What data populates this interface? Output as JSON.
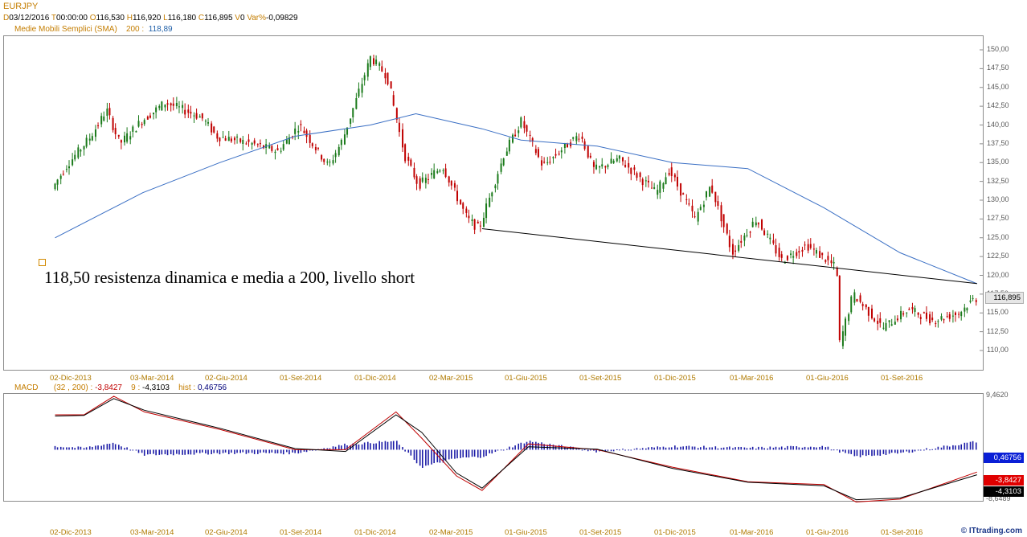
{
  "header": {
    "symbol": "EURJPY",
    "d_label": "D",
    "date": "03/12/2016",
    "t_label": "T",
    "time": "00:00:00",
    "o_label": "O",
    "open": "116,530",
    "h_label": "H",
    "high": "116,920",
    "l_label": "L",
    "low": "116,180",
    "c_label": "C",
    "close": "116,895",
    "v_label": "V",
    "volume": "0",
    "var_label": "Var%",
    "var": "-0,09829",
    "sma_label": "Medie Mobili Semplici (SMA)",
    "sma_period": "200",
    "sma_value": "118,89"
  },
  "annotation": {
    "text": "118,50 resistenza dinamica e media a 200, livello short"
  },
  "price_axis": {
    "ticks": [
      "150,00",
      "147,50",
      "145,00",
      "142,50",
      "140,00",
      "137,50",
      "135,00",
      "132,50",
      "130,00",
      "127,50",
      "125,00",
      "122,50",
      "120,00",
      "117,50",
      "115,00",
      "112,50",
      "110,00"
    ],
    "last_price": "116,895"
  },
  "date_labels": [
    "02-Dic-2013",
    "03-Mar-2014",
    "02-Giu-2014",
    "01-Set-2014",
    "01-Dic-2014",
    "02-Mar-2015",
    "01-Giu-2015",
    "01-Set-2015",
    "01-Dic-2015",
    "01-Mar-2016",
    "01-Giu-2016",
    "01-Set-2016"
  ],
  "macd_header": {
    "label": "MACD",
    "params": "(32 , 200)",
    "sep": ":",
    "macd_value": "-3,8427",
    "signal_period": "9",
    "signal_sep": ":",
    "signal_value": "-4,3103",
    "hist_label": "hist",
    "hist_sep": ":",
    "hist_value": "0,46756"
  },
  "macd_axis": {
    "top": "9,4620",
    "bottom": "-8,6489"
  },
  "macd_tags": {
    "hist": "0,46756",
    "macd": "-3,8427",
    "signal": "-4,3103"
  },
  "watermark": "© ITtrading.com",
  "colors": {
    "up": "#1a7a1a",
    "down": "#c00000",
    "sma": "#3a6fc4",
    "trend": "#000000",
    "hist": "#1a1aa6",
    "macd": "#c00000",
    "signal": "#000000"
  },
  "chart_data": [
    {
      "type": "candlestick",
      "symbol": "EURJPY",
      "x_range": [
        "2013-11",
        "2016-12-03"
      ],
      "ylim": [
        108.0,
        151.5
      ],
      "price_path": [
        {
          "x": "2013-11-15",
          "y": 131.5
        },
        {
          "x": "2013-12-02",
          "y": 134.5
        },
        {
          "x": "2014-01-01",
          "y": 138.5
        },
        {
          "x": "2014-01-20",
          "y": 142.0
        },
        {
          "x": "2014-02-05",
          "y": 137.5
        },
        {
          "x": "2014-03-03",
          "y": 140.5
        },
        {
          "x": "2014-04-01",
          "y": 143.0
        },
        {
          "x": "2014-05-15",
          "y": 141.0
        },
        {
          "x": "2014-06-02",
          "y": 138.5
        },
        {
          "x": "2014-07-15",
          "y": 137.5
        },
        {
          "x": "2014-08-15",
          "y": 136.5
        },
        {
          "x": "2014-09-10",
          "y": 140.0
        },
        {
          "x": "2014-10-15",
          "y": 134.5
        },
        {
          "x": "2014-11-01",
          "y": 138.0
        },
        {
          "x": "2014-12-05",
          "y": 149.0
        },
        {
          "x": "2014-12-25",
          "y": 146.5
        },
        {
          "x": "2015-01-15",
          "y": 136.0
        },
        {
          "x": "2015-02-01",
          "y": 132.0
        },
        {
          "x": "2015-03-02",
          "y": 134.5
        },
        {
          "x": "2015-04-01",
          "y": 127.5
        },
        {
          "x": "2015-04-15",
          "y": 126.2
        },
        {
          "x": "2015-05-15",
          "y": 136.0
        },
        {
          "x": "2015-06-05",
          "y": 140.5
        },
        {
          "x": "2015-07-01",
          "y": 134.5
        },
        {
          "x": "2015-08-01",
          "y": 137.5
        },
        {
          "x": "2015-08-15",
          "y": 138.8
        },
        {
          "x": "2015-09-01",
          "y": 134.0
        },
        {
          "x": "2015-10-01",
          "y": 135.5
        },
        {
          "x": "2015-11-15",
          "y": 131.0
        },
        {
          "x": "2015-12-01",
          "y": 134.0
        },
        {
          "x": "2016-01-01",
          "y": 127.5
        },
        {
          "x": "2016-01-20",
          "y": 132.0
        },
        {
          "x": "2016-02-15",
          "y": 123.0
        },
        {
          "x": "2016-03-15",
          "y": 127.5
        },
        {
          "x": "2016-04-15",
          "y": 122.0
        },
        {
          "x": "2016-05-15",
          "y": 124.0
        },
        {
          "x": "2016-06-20",
          "y": 121.0
        },
        {
          "x": "2016-06-24",
          "y": 111.0
        },
        {
          "x": "2016-07-10",
          "y": 117.5
        },
        {
          "x": "2016-08-15",
          "y": 113.0
        },
        {
          "x": "2016-09-15",
          "y": 115.5
        },
        {
          "x": "2016-10-15",
          "y": 114.0
        },
        {
          "x": "2016-11-15",
          "y": 115.0
        },
        {
          "x": "2016-12-03",
          "y": 116.895
        }
      ],
      "sma200": [
        {
          "x": "2013-11-15",
          "y": 125.0
        },
        {
          "x": "2014-03-01",
          "y": 131.0
        },
        {
          "x": "2014-06-02",
          "y": 135.0
        },
        {
          "x": "2014-09-01",
          "y": 138.5
        },
        {
          "x": "2014-12-01",
          "y": 140.0
        },
        {
          "x": "2015-01-25",
          "y": 141.5
        },
        {
          "x": "2015-04-15",
          "y": 139.5
        },
        {
          "x": "2015-06-01",
          "y": 138.0
        },
        {
          "x": "2015-09-01",
          "y": 137.2
        },
        {
          "x": "2015-12-01",
          "y": 135.0
        },
        {
          "x": "2016-03-01",
          "y": 134.2
        },
        {
          "x": "2016-06-01",
          "y": 129.0
        },
        {
          "x": "2016-09-01",
          "y": 123.0
        },
        {
          "x": "2016-12-03",
          "y": 118.89
        }
      ],
      "trendline": [
        {
          "x": "2015-04-15",
          "y": 126.2
        },
        {
          "x": "2016-12-03",
          "y": 118.9
        }
      ]
    },
    {
      "type": "line",
      "indicator": "MACD (32 , 200)",
      "ylim": [
        -8.6489,
        9.462
      ],
      "series": [
        {
          "name": "MACD",
          "points": [
            {
              "x": "2013-11-15",
              "y": 6.0
            },
            {
              "x": "2013-12-20",
              "y": 6.0
            },
            {
              "x": "2014-01-25",
              "y": 9.2
            },
            {
              "x": "2014-03-03",
              "y": 6.5
            },
            {
              "x": "2014-06-02",
              "y": 3.5
            },
            {
              "x": "2014-09-01",
              "y": 0.0
            },
            {
              "x": "2014-11-01",
              "y": 0.0
            },
            {
              "x": "2015-01-01",
              "y": 6.5
            },
            {
              "x": "2015-02-01",
              "y": 2.0
            },
            {
              "x": "2015-03-15",
              "y": -4.5
            },
            {
              "x": "2015-04-15",
              "y": -7.0
            },
            {
              "x": "2015-06-10",
              "y": 1.0
            },
            {
              "x": "2015-09-01",
              "y": 0.0
            },
            {
              "x": "2015-12-01",
              "y": -3.0
            },
            {
              "x": "2016-03-01",
              "y": -5.5
            },
            {
              "x": "2016-06-01",
              "y": -6.0
            },
            {
              "x": "2016-07-10",
              "y": -9.0
            },
            {
              "x": "2016-09-01",
              "y": -8.5
            },
            {
              "x": "2016-12-03",
              "y": -3.8427
            }
          ]
        },
        {
          "name": "Signal",
          "points": [
            {
              "x": "2013-11-15",
              "y": 5.8
            },
            {
              "x": "2013-12-20",
              "y": 5.9
            },
            {
              "x": "2014-01-25",
              "y": 8.8
            },
            {
              "x": "2014-03-03",
              "y": 6.8
            },
            {
              "x": "2014-06-02",
              "y": 3.7
            },
            {
              "x": "2014-09-01",
              "y": 0.2
            },
            {
              "x": "2014-11-01",
              "y": -0.3
            },
            {
              "x": "2015-01-01",
              "y": 6.0
            },
            {
              "x": "2015-02-01",
              "y": 3.0
            },
            {
              "x": "2015-03-15",
              "y": -4.0
            },
            {
              "x": "2015-04-15",
              "y": -6.6
            },
            {
              "x": "2015-06-10",
              "y": 0.5
            },
            {
              "x": "2015-09-01",
              "y": 0.1
            },
            {
              "x": "2015-12-01",
              "y": -3.2
            },
            {
              "x": "2016-03-01",
              "y": -5.6
            },
            {
              "x": "2016-06-01",
              "y": -6.2
            },
            {
              "x": "2016-07-10",
              "y": -8.6
            },
            {
              "x": "2016-09-01",
              "y": -8.3
            },
            {
              "x": "2016-12-03",
              "y": -4.3103
            }
          ]
        },
        {
          "name": "hist",
          "last": 0.46756
        }
      ]
    }
  ]
}
